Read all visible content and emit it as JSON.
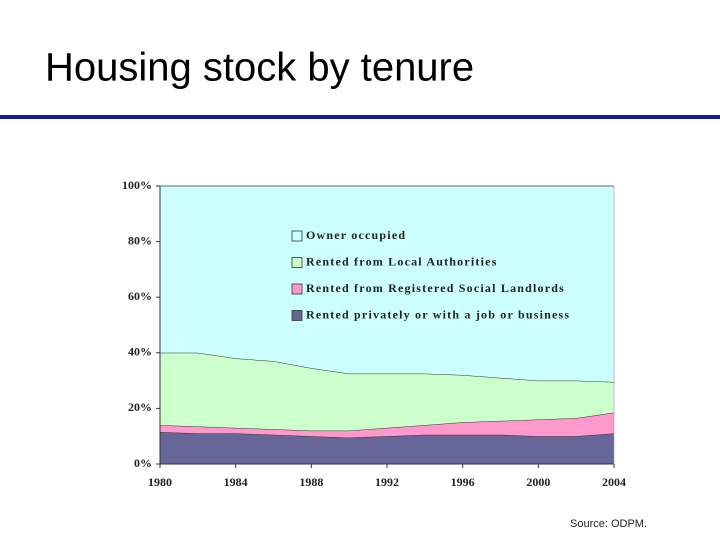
{
  "chart_data": {
    "type": "stacked_area",
    "title": "Housing stock by tenure",
    "source": "Source: ODPM.",
    "x": [
      1980,
      1982,
      1984,
      1986,
      1988,
      1990,
      1992,
      1994,
      1996,
      1998,
      2000,
      2002,
      2004
    ],
    "xlim": [
      1980,
      2004
    ],
    "xticks": [
      1980,
      1984,
      1988,
      1992,
      1996,
      2000,
      2004
    ],
    "ylim": [
      0,
      100
    ],
    "yticks": [
      {
        "value": 0,
        "label": "0%"
      },
      {
        "value": 20,
        "label": "20%"
      },
      {
        "value": 40,
        "label": "40%"
      },
      {
        "value": 60,
        "label": "60%"
      },
      {
        "value": 80,
        "label": "80%"
      },
      {
        "value": 100,
        "label": "100%"
      }
    ],
    "series": [
      {
        "name": "Rented privately or with a job or business",
        "color": "#666699",
        "values": [
          11.5,
          11,
          11,
          10.5,
          10,
          9.5,
          10,
          10.5,
          10.5,
          10.5,
          10,
          10,
          11
        ]
      },
      {
        "name": "Rented from Registered Social Landlords",
        "color": "#ff99cc",
        "values": [
          2.5,
          2.5,
          2,
          2,
          2,
          2.5,
          3,
          3.5,
          4.5,
          5,
          6,
          6.5,
          7.5
        ]
      },
      {
        "name": "Rented from Local Authorities",
        "color": "#ccffcc",
        "values": [
          26,
          26.5,
          25,
          24.5,
          22.5,
          20.5,
          19.5,
          18.5,
          17,
          15.5,
          14,
          13.5,
          11
        ]
      },
      {
        "name": "Owner occupied",
        "color": "#ccffff",
        "values": [
          60,
          60,
          62,
          63,
          65.5,
          67.5,
          67.5,
          67.5,
          68,
          69,
          70,
          70,
          70.5
        ]
      }
    ],
    "legend": "upper-left"
  }
}
